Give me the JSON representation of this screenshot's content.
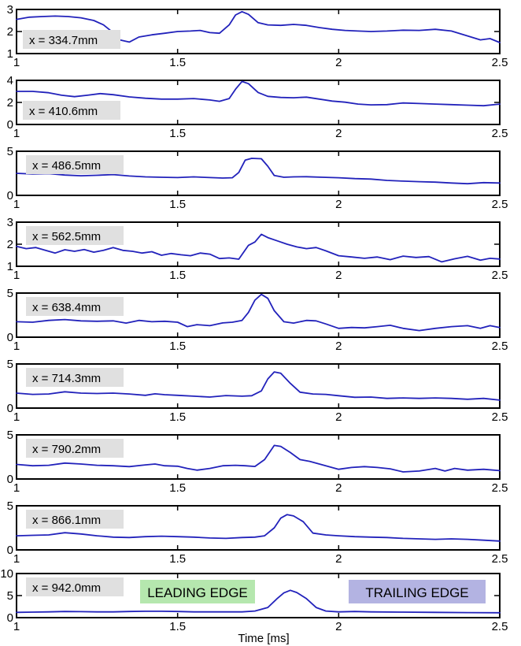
{
  "figure": {
    "xlabel": "Time [ms]",
    "line_color": "#2222bb",
    "axis_color": "#000000",
    "label_bg": "#e0e0e0",
    "annotations": [
      {
        "name": "leading-edge",
        "text": "LEADING EDGE",
        "bg": "#b5e7ae"
      },
      {
        "name": "trailing-edge",
        "text": "TRAILING EDGE",
        "bg": "#b3b3e2"
      }
    ]
  },
  "chart_data": [
    {
      "type": "line",
      "title": "x = 334.7mm",
      "xlim": [
        1,
        2.5
      ],
      "ylim": [
        1,
        3
      ],
      "xticks": [
        1,
        1.5,
        2,
        2.5
      ],
      "yticks": [
        1,
        2,
        3
      ],
      "label_pos": "bottom-left",
      "x": [
        1.0,
        1.04,
        1.08,
        1.12,
        1.16,
        1.2,
        1.24,
        1.27,
        1.3,
        1.32,
        1.35,
        1.38,
        1.42,
        1.46,
        1.5,
        1.54,
        1.57,
        1.6,
        1.63,
        1.66,
        1.68,
        1.7,
        1.72,
        1.75,
        1.78,
        1.82,
        1.86,
        1.9,
        1.94,
        1.98,
        2.02,
        2.06,
        2.1,
        2.15,
        2.2,
        2.25,
        2.3,
        2.35,
        2.4,
        2.44,
        2.47,
        2.5
      ],
      "y": [
        2.55,
        2.65,
        2.68,
        2.7,
        2.68,
        2.62,
        2.5,
        2.3,
        1.95,
        1.62,
        1.52,
        1.75,
        1.85,
        1.92,
        2.0,
        2.02,
        2.05,
        1.95,
        1.92,
        2.3,
        2.75,
        2.9,
        2.78,
        2.4,
        2.3,
        2.28,
        2.32,
        2.28,
        2.18,
        2.1,
        2.05,
        2.02,
        2.0,
        2.02,
        2.06,
        2.05,
        2.1,
        2.02,
        1.8,
        1.62,
        1.68,
        1.5
      ]
    },
    {
      "type": "line",
      "title": "x = 410.6mm",
      "xlim": [
        1,
        2.5
      ],
      "ylim": [
        0,
        4
      ],
      "xticks": [
        1,
        1.5,
        2,
        2.5
      ],
      "yticks": [
        0,
        2,
        4
      ],
      "label_pos": "bottom-left",
      "x": [
        1.0,
        1.05,
        1.1,
        1.14,
        1.18,
        1.22,
        1.26,
        1.3,
        1.35,
        1.4,
        1.45,
        1.5,
        1.55,
        1.6,
        1.63,
        1.66,
        1.68,
        1.7,
        1.72,
        1.75,
        1.78,
        1.82,
        1.86,
        1.9,
        1.94,
        1.98,
        2.02,
        2.06,
        2.1,
        2.15,
        2.2,
        2.25,
        2.3,
        2.35,
        2.4,
        2.45,
        2.5
      ],
      "y": [
        3.0,
        3.0,
        2.88,
        2.65,
        2.52,
        2.65,
        2.8,
        2.7,
        2.5,
        2.38,
        2.3,
        2.3,
        2.35,
        2.22,
        2.1,
        2.35,
        3.2,
        3.9,
        3.7,
        2.9,
        2.55,
        2.45,
        2.42,
        2.48,
        2.3,
        2.12,
        2.02,
        1.85,
        1.78,
        1.8,
        1.95,
        1.9,
        1.85,
        1.8,
        1.75,
        1.7,
        1.85
      ]
    },
    {
      "type": "line",
      "title": "x = 486.5mm",
      "xlim": [
        1,
        2.5
      ],
      "ylim": [
        0,
        5
      ],
      "xticks": [
        1,
        1.5,
        2,
        2.5
      ],
      "yticks": [
        0,
        5
      ],
      "label_pos": "top-left",
      "x": [
        1.0,
        1.05,
        1.1,
        1.15,
        1.2,
        1.25,
        1.3,
        1.35,
        1.4,
        1.45,
        1.5,
        1.55,
        1.6,
        1.64,
        1.67,
        1.69,
        1.71,
        1.73,
        1.76,
        1.78,
        1.8,
        1.83,
        1.86,
        1.9,
        1.95,
        2.0,
        2.05,
        2.1,
        2.15,
        2.2,
        2.25,
        2.3,
        2.35,
        2.4,
        2.45,
        2.5
      ],
      "y": [
        2.5,
        2.42,
        2.46,
        2.3,
        2.22,
        2.28,
        2.36,
        2.2,
        2.1,
        2.05,
        2.02,
        2.1,
        2.02,
        1.96,
        2.0,
        2.6,
        4.0,
        4.2,
        4.15,
        3.3,
        2.25,
        2.05,
        2.1,
        2.12,
        2.05,
        2.0,
        1.9,
        1.85,
        1.7,
        1.62,
        1.55,
        1.5,
        1.4,
        1.32,
        1.45,
        1.4
      ]
    },
    {
      "type": "line",
      "title": "x = 562.5mm",
      "xlim": [
        1,
        2.5
      ],
      "ylim": [
        1,
        3
      ],
      "xticks": [
        1,
        1.5,
        2,
        2.5
      ],
      "yticks": [
        1,
        2,
        3
      ],
      "label_pos": "top-left",
      "x": [
        1.0,
        1.03,
        1.06,
        1.09,
        1.12,
        1.15,
        1.18,
        1.21,
        1.24,
        1.27,
        1.3,
        1.33,
        1.36,
        1.39,
        1.42,
        1.45,
        1.48,
        1.51,
        1.54,
        1.57,
        1.6,
        1.63,
        1.66,
        1.69,
        1.72,
        1.74,
        1.76,
        1.78,
        1.81,
        1.84,
        1.87,
        1.9,
        1.93,
        1.96,
        2.0,
        2.04,
        2.08,
        2.12,
        2.16,
        2.2,
        2.24,
        2.28,
        2.32,
        2.36,
        2.4,
        2.44,
        2.47,
        2.5
      ],
      "y": [
        1.9,
        1.8,
        1.85,
        1.72,
        1.6,
        1.75,
        1.68,
        1.76,
        1.64,
        1.72,
        1.85,
        1.72,
        1.68,
        1.6,
        1.66,
        1.5,
        1.58,
        1.52,
        1.48,
        1.6,
        1.55,
        1.35,
        1.38,
        1.32,
        1.95,
        2.1,
        2.45,
        2.3,
        2.15,
        2.0,
        1.88,
        1.8,
        1.85,
        1.7,
        1.48,
        1.42,
        1.36,
        1.42,
        1.3,
        1.46,
        1.4,
        1.44,
        1.2,
        1.34,
        1.45,
        1.28,
        1.36,
        1.33
      ]
    },
    {
      "type": "line",
      "title": "x = 638.4mm",
      "xlim": [
        1,
        2.5
      ],
      "ylim": [
        0,
        5
      ],
      "xticks": [
        1,
        1.5,
        2,
        2.5
      ],
      "yticks": [
        0,
        5
      ],
      "label_pos": "top-left",
      "x": [
        1.0,
        1.05,
        1.1,
        1.15,
        1.2,
        1.25,
        1.3,
        1.34,
        1.38,
        1.42,
        1.46,
        1.5,
        1.53,
        1.56,
        1.6,
        1.64,
        1.67,
        1.7,
        1.72,
        1.74,
        1.76,
        1.78,
        1.8,
        1.83,
        1.86,
        1.9,
        1.93,
        1.96,
        2.0,
        2.04,
        2.08,
        2.12,
        2.16,
        2.2,
        2.25,
        2.3,
        2.35,
        2.4,
        2.44,
        2.47,
        2.5
      ],
      "y": [
        1.75,
        1.7,
        1.9,
        2.0,
        1.85,
        1.8,
        1.85,
        1.6,
        1.9,
        1.75,
        1.8,
        1.7,
        1.2,
        1.42,
        1.3,
        1.62,
        1.7,
        1.9,
        2.8,
        4.2,
        4.85,
        4.4,
        3.0,
        1.75,
        1.6,
        1.9,
        1.85,
        1.5,
        1.0,
        1.1,
        1.05,
        1.2,
        1.35,
        1.0,
        0.75,
        1.0,
        1.2,
        1.3,
        1.0,
        1.3,
        1.1
      ]
    },
    {
      "type": "line",
      "title": "x = 714.3mm",
      "xlim": [
        1,
        2.5
      ],
      "ylim": [
        0,
        5
      ],
      "xticks": [
        1,
        1.5,
        2,
        2.5
      ],
      "yticks": [
        0,
        5
      ],
      "label_pos": "top-left",
      "x": [
        1.0,
        1.05,
        1.1,
        1.15,
        1.2,
        1.25,
        1.3,
        1.35,
        1.4,
        1.43,
        1.46,
        1.5,
        1.55,
        1.6,
        1.65,
        1.7,
        1.73,
        1.76,
        1.78,
        1.8,
        1.82,
        1.85,
        1.88,
        1.92,
        1.96,
        2.0,
        2.05,
        2.1,
        2.15,
        2.2,
        2.25,
        2.3,
        2.35,
        2.4,
        2.45,
        2.5
      ],
      "y": [
        1.7,
        1.55,
        1.6,
        1.85,
        1.7,
        1.65,
        1.7,
        1.6,
        1.45,
        1.62,
        1.52,
        1.45,
        1.35,
        1.25,
        1.42,
        1.35,
        1.4,
        1.95,
        3.3,
        4.1,
        3.95,
        2.8,
        1.8,
        1.6,
        1.55,
        1.4,
        1.22,
        1.25,
        1.1,
        1.15,
        1.1,
        1.15,
        1.1,
        1.0,
        1.1,
        0.9
      ]
    },
    {
      "type": "line",
      "title": "x = 790.2mm",
      "xlim": [
        1,
        2.5
      ],
      "ylim": [
        0,
        5
      ],
      "xticks": [
        1,
        1.5,
        2,
        2.5
      ],
      "yticks": [
        0,
        5
      ],
      "label_pos": "top-left",
      "x": [
        1.0,
        1.05,
        1.1,
        1.15,
        1.2,
        1.25,
        1.3,
        1.35,
        1.4,
        1.43,
        1.46,
        1.5,
        1.53,
        1.56,
        1.6,
        1.64,
        1.68,
        1.71,
        1.74,
        1.77,
        1.8,
        1.82,
        1.85,
        1.88,
        1.91,
        1.95,
        2.0,
        2.04,
        2.08,
        2.12,
        2.16,
        2.2,
        2.25,
        2.3,
        2.33,
        2.36,
        2.4,
        2.45,
        2.5
      ],
      "y": [
        1.65,
        1.5,
        1.55,
        1.8,
        1.7,
        1.55,
        1.5,
        1.4,
        1.6,
        1.7,
        1.5,
        1.45,
        1.2,
        1.0,
        1.2,
        1.5,
        1.55,
        1.5,
        1.42,
        2.2,
        3.8,
        3.7,
        3.0,
        2.2,
        2.0,
        1.6,
        1.1,
        1.3,
        1.4,
        1.3,
        1.15,
        0.8,
        0.9,
        1.2,
        0.9,
        1.2,
        1.0,
        1.1,
        0.95
      ]
    },
    {
      "type": "line",
      "title": "x = 866.1mm",
      "xlim": [
        1,
        2.5
      ],
      "ylim": [
        0,
        5
      ],
      "xticks": [
        1,
        1.5,
        2,
        2.5
      ],
      "yticks": [
        0,
        5
      ],
      "label_pos": "top-left",
      "x": [
        1.0,
        1.05,
        1.1,
        1.15,
        1.2,
        1.25,
        1.3,
        1.35,
        1.4,
        1.45,
        1.5,
        1.55,
        1.6,
        1.65,
        1.7,
        1.74,
        1.77,
        1.8,
        1.82,
        1.84,
        1.86,
        1.89,
        1.92,
        1.96,
        2.0,
        2.05,
        2.1,
        2.15,
        2.2,
        2.25,
        2.3,
        2.35,
        2.4,
        2.45,
        2.5
      ],
      "y": [
        1.6,
        1.65,
        1.7,
        1.95,
        1.8,
        1.6,
        1.45,
        1.4,
        1.5,
        1.55,
        1.5,
        1.45,
        1.35,
        1.3,
        1.4,
        1.45,
        1.6,
        2.5,
        3.6,
        4.0,
        3.85,
        3.2,
        1.9,
        1.7,
        1.6,
        1.5,
        1.45,
        1.4,
        1.3,
        1.25,
        1.2,
        1.25,
        1.2,
        1.1,
        1.0
      ]
    },
    {
      "type": "line",
      "title": "x = 942.0mm",
      "xlim": [
        1,
        2.5
      ],
      "ylim": [
        0,
        10
      ],
      "xticks": [
        1,
        1.5,
        2,
        2.5
      ],
      "yticks": [
        0,
        5,
        10
      ],
      "label_pos": "top-left",
      "x": [
        1.0,
        1.05,
        1.1,
        1.15,
        1.2,
        1.25,
        1.3,
        1.35,
        1.4,
        1.45,
        1.5,
        1.55,
        1.6,
        1.65,
        1.7,
        1.74,
        1.78,
        1.81,
        1.83,
        1.85,
        1.87,
        1.9,
        1.93,
        1.96,
        2.0,
        2.05,
        2.1,
        2.2,
        2.3,
        2.4,
        2.5
      ],
      "y": [
        1.2,
        1.25,
        1.3,
        1.4,
        1.35,
        1.3,
        1.3,
        1.4,
        1.45,
        1.45,
        1.4,
        1.3,
        1.3,
        1.3,
        1.3,
        1.5,
        2.3,
        4.4,
        5.6,
        6.2,
        5.7,
        4.3,
        2.3,
        1.5,
        1.3,
        1.4,
        1.3,
        1.25,
        1.2,
        1.15,
        1.1
      ]
    }
  ]
}
